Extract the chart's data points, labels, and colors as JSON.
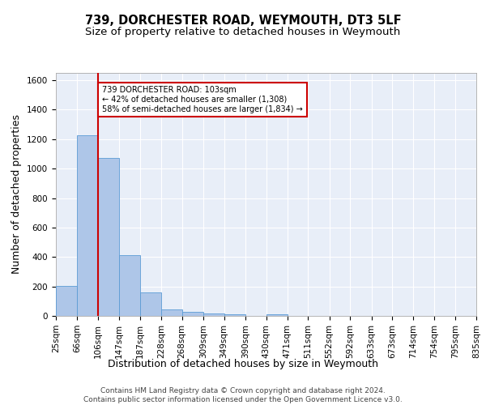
{
  "title": "739, DORCHESTER ROAD, WEYMOUTH, DT3 5LF",
  "subtitle": "Size of property relative to detached houses in Weymouth",
  "xlabel": "Distribution of detached houses by size in Weymouth",
  "ylabel": "Number of detached properties",
  "footer_line1": "Contains HM Land Registry data © Crown copyright and database right 2024.",
  "footer_line2": "Contains public sector information licensed under the Open Government Licence v3.0.",
  "bin_edges": [
    25,
    66,
    106,
    147,
    187,
    228,
    268,
    309,
    349,
    390,
    430,
    471,
    511,
    552,
    592,
    633,
    673,
    714,
    754,
    795,
    835
  ],
  "bar_heights": [
    205,
    1225,
    1075,
    410,
    160,
    45,
    25,
    18,
    13,
    0,
    12,
    0,
    0,
    0,
    0,
    0,
    0,
    0,
    0,
    0
  ],
  "bar_color": "#aec6e8",
  "bar_edge_color": "#5b9bd5",
  "vline_x": 106,
  "vline_color": "#cc0000",
  "annotation_line1": "739 DORCHESTER ROAD: 103sqm",
  "annotation_line2": "← 42% of detached houses are smaller (1,308)",
  "annotation_line3": "58% of semi-detached houses are larger (1,834) →",
  "annotation_box_color": "#cc0000",
  "ylim": [
    0,
    1650
  ],
  "yticks": [
    0,
    200,
    400,
    600,
    800,
    1000,
    1200,
    1400,
    1600
  ],
  "bg_color": "#e8eef8",
  "grid_color": "#ffffff",
  "title_fontsize": 10.5,
  "subtitle_fontsize": 9.5,
  "axis_label_fontsize": 9,
  "tick_fontsize": 7.5,
  "footer_fontsize": 6.5
}
